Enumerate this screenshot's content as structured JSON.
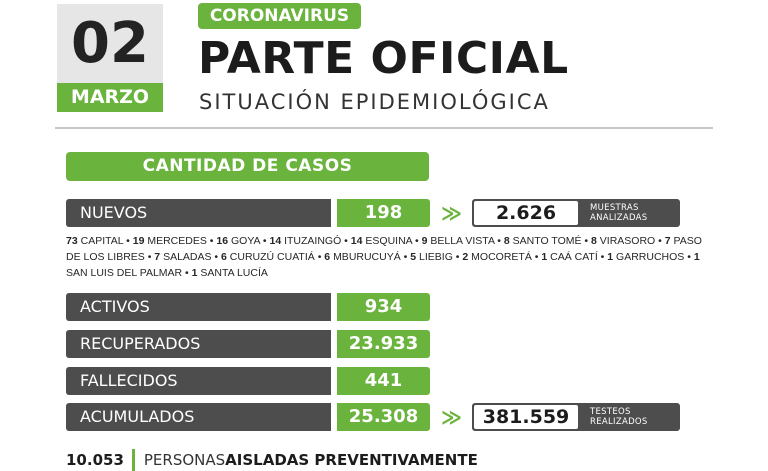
{
  "date": {
    "day": "02",
    "month": "MARZO"
  },
  "header": {
    "tag": "CORONAVIRUS",
    "title": "PARTE OFICIAL",
    "subtitle": "SITUACIÓN EPIDEMIOLÓGICA"
  },
  "section_title": "CANTIDAD DE CASOS",
  "rows": {
    "nuevos": {
      "label": "NUEVOS",
      "value": "198"
    },
    "activos": {
      "label": "ACTIVOS",
      "value": "934"
    },
    "recuperados": {
      "label": "RECUPERADOS",
      "value": "23.933"
    },
    "fallecidos": {
      "label": "FALLECIDOS",
      "value": "441"
    },
    "acumulados": {
      "label": "ACUMULADOS",
      "value": "25.308"
    }
  },
  "chevron": "≫",
  "muestras": {
    "value": "2.626",
    "label_line1": "MUESTRAS",
    "label_line2": "ANALIZADAS"
  },
  "testeos": {
    "value": "381.559",
    "label_line1": "TESTEOS",
    "label_line2": "REALIZADOS"
  },
  "cities": [
    {
      "n": "73",
      "name": "CAPITAL"
    },
    {
      "n": "19",
      "name": "MERCEDES"
    },
    {
      "n": "16",
      "name": "GOYA"
    },
    {
      "n": "14",
      "name": "ITUZAINGÓ"
    },
    {
      "n": "14",
      "name": "ESQUINA"
    },
    {
      "n": "9",
      "name": "BELLA VISTA"
    },
    {
      "n": "8",
      "name": "SANTO TOMÉ"
    },
    {
      "n": "8",
      "name": "VIRASORO"
    },
    {
      "n": "7",
      "name": "PASO DE LOS LIBRES"
    },
    {
      "n": "7",
      "name": "SALADAS"
    },
    {
      "n": "6",
      "name": "CURUZÚ CUATIÁ"
    },
    {
      "n": "6",
      "name": "MBURUCUYÁ"
    },
    {
      "n": "5",
      "name": "LIEBIG"
    },
    {
      "n": "2",
      "name": "MOCORETÁ"
    },
    {
      "n": "1",
      "name": "CAÁ CATÍ"
    },
    {
      "n": "1",
      "name": "GARRUCHOS"
    },
    {
      "n": "1",
      "name": "SAN LUIS DEL PALMAR"
    },
    {
      "n": "1",
      "name": "SANTA LUCÍA"
    }
  ],
  "footer": {
    "number": "10.053",
    "text_prefix": "PERSONAS ",
    "text_bold": "AISLADAS PREVENTIVAMENTE"
  },
  "colors": {
    "green": "#6ab43e",
    "dark": "#4d4d4d",
    "light_gray": "#e6e6e6"
  }
}
